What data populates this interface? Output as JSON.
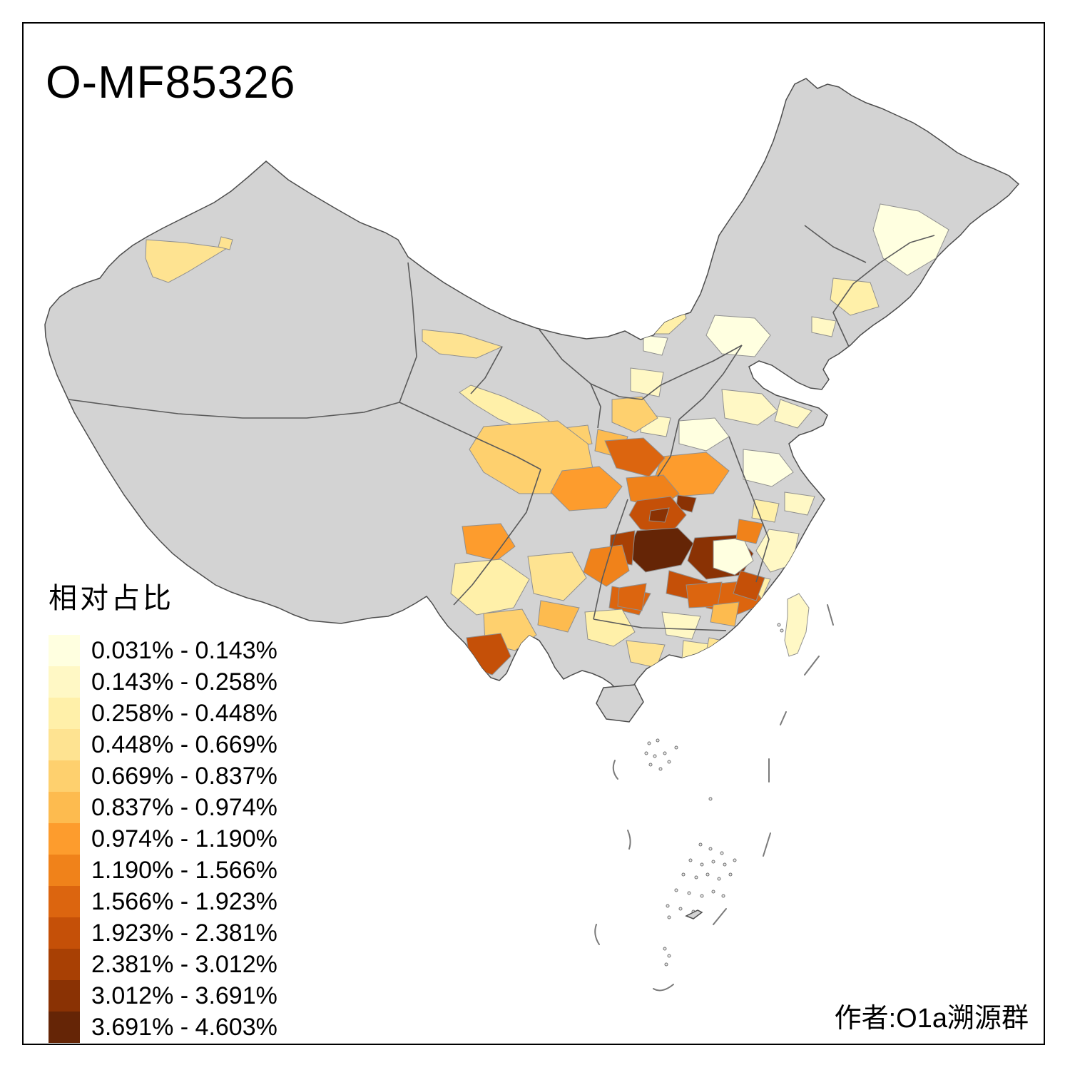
{
  "title": "O-MF85326",
  "credit": "作者:O1a溯源群",
  "legend": {
    "title": "相对占比",
    "items": [
      {
        "label": "0.031% - 0.143%",
        "color": "#FFFFE0"
      },
      {
        "label": "0.143% - 0.258%",
        "color": "#FFF8C5"
      },
      {
        "label": "0.258% - 0.448%",
        "color": "#FFF0A9"
      },
      {
        "label": "0.448% - 0.669%",
        "color": "#FEE391"
      },
      {
        "label": "0.669% - 0.837%",
        "color": "#FED06E"
      },
      {
        "label": "0.837% - 0.974%",
        "color": "#FDBB4F"
      },
      {
        "label": "0.974% - 1.190%",
        "color": "#FD9C2D"
      },
      {
        "label": "1.190% - 1.566%",
        "color": "#F0821A"
      },
      {
        "label": "1.566% - 1.923%",
        "color": "#DC650F"
      },
      {
        "label": "1.923% - 2.381%",
        "color": "#C55008"
      },
      {
        "label": "2.381% - 3.012%",
        "color": "#A84004"
      },
      {
        "label": "3.012% - 3.691%",
        "color": "#8A3204"
      },
      {
        "label": "3.691% - 4.603%",
        "color": "#652506"
      }
    ]
  },
  "map": {
    "background": "#FFFFFF",
    "nodata_color": "#D3D3D3",
    "frame_color": "#000000",
    "regions": [
      {
        "id": "kashi",
        "cls": 4
      },
      {
        "id": "hami",
        "cls": 4
      },
      {
        "id": "golmud",
        "cls": 4
      },
      {
        "id": "hexi",
        "cls": 3
      },
      {
        "id": "lanzhou",
        "cls": 5
      },
      {
        "id": "hetao",
        "cls": 3
      },
      {
        "id": "yinchuan",
        "cls": 1
      },
      {
        "id": "shaanxi-n",
        "cls": 2
      },
      {
        "id": "haerbin",
        "cls": 1
      },
      {
        "id": "changchun",
        "cls": 3
      },
      {
        "id": "shenyang",
        "cls": 2
      },
      {
        "id": "beijing",
        "cls": 1
      },
      {
        "id": "hebei",
        "cls": 2
      },
      {
        "id": "shandong",
        "cls": 2
      },
      {
        "id": "henan-e",
        "cls": 1
      },
      {
        "id": "henan-w",
        "cls": 2
      },
      {
        "id": "jiangsu",
        "cls": 1
      },
      {
        "id": "shanghai",
        "cls": 2
      },
      {
        "id": "anhui",
        "cls": 3
      },
      {
        "id": "zhejiang",
        "cls": 2
      },
      {
        "id": "fujian",
        "cls": 3
      },
      {
        "id": "quzhou",
        "cls": 9
      },
      {
        "id": "shaanxi-s",
        "cls": 5
      },
      {
        "id": "shanxi-sw",
        "cls": 6
      },
      {
        "id": "hubei-w",
        "cls": 7
      },
      {
        "id": "yichang",
        "cls": 12
      },
      {
        "id": "sichuan-w",
        "cls": 5
      },
      {
        "id": "chengdu",
        "cls": 7
      },
      {
        "id": "sichuan-ne",
        "cls": 9
      },
      {
        "id": "dazhou",
        "cls": 8
      },
      {
        "id": "chongqing",
        "cls": 10
      },
      {
        "id": "chongqing-s",
        "cls": 12
      },
      {
        "id": "zunyi-dark",
        "cls": 13
      },
      {
        "id": "huaihua-dark",
        "cls": 12
      },
      {
        "id": "bijie",
        "cls": 11
      },
      {
        "id": "guiyang",
        "cls": 10
      },
      {
        "id": "hunan-s",
        "cls": 10
      },
      {
        "id": "guizhou-c",
        "cls": 8
      },
      {
        "id": "qiannan",
        "cls": 9
      },
      {
        "id": "yunnan-nw",
        "cls": 7
      },
      {
        "id": "yunnan-c",
        "cls": 3
      },
      {
        "id": "kunming",
        "cls": 5
      },
      {
        "id": "xishuangbanna",
        "cls": 10
      },
      {
        "id": "qujing",
        "cls": 4
      },
      {
        "id": "wenshan",
        "cls": 6
      },
      {
        "id": "guangxi-w",
        "cls": 3
      },
      {
        "id": "guangxi-s",
        "cls": 4
      },
      {
        "id": "guangxi-e",
        "cls": 2
      },
      {
        "id": "wuzhou",
        "cls": 3
      },
      {
        "id": "guilin",
        "cls": 9
      },
      {
        "id": "shaoguan",
        "cls": 9
      },
      {
        "id": "guangzhou",
        "cls": 4
      },
      {
        "id": "chenzhou",
        "cls": 6
      },
      {
        "id": "jiangxi",
        "cls": 1
      },
      {
        "id": "jiujiang",
        "cls": 8
      },
      {
        "id": "taiwan",
        "cls": 2
      }
    ]
  }
}
